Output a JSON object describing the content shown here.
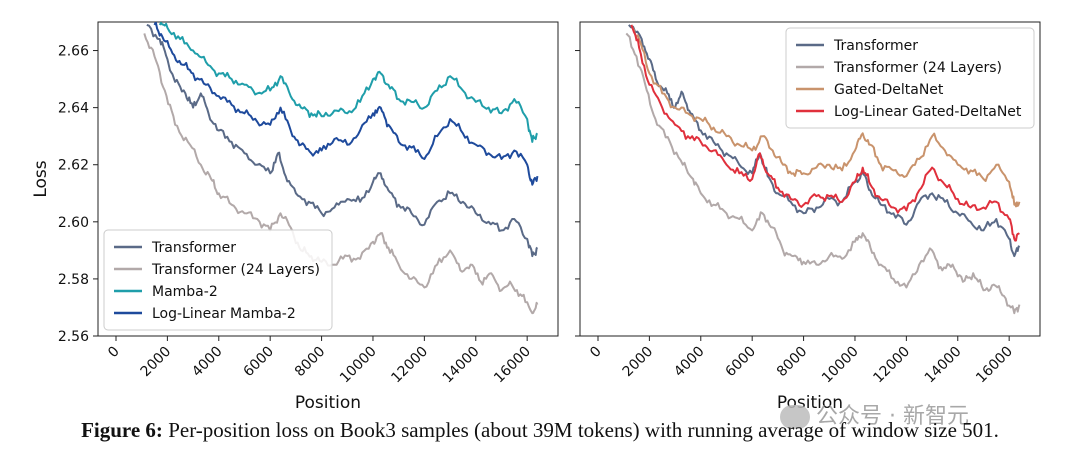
{
  "caption": {
    "label": "Figure 6:",
    "text": " Per-position loss on Book3 samples (about 39M tokens) with running average of window size 501."
  },
  "watermark": {
    "text": "公众号 · 新智元",
    "logo": "wechat-icon"
  },
  "chart_data": [
    {
      "type": "line",
      "xlabel": "Position",
      "ylabel": "Loss",
      "xlim": [
        -700,
        17200
      ],
      "ylim": [
        2.56,
        2.67
      ],
      "xticks": [
        0,
        2000,
        4000,
        6000,
        8000,
        10000,
        12000,
        14000,
        16000
      ],
      "yticks": [
        2.56,
        2.58,
        2.6,
        2.62,
        2.64,
        2.66
      ],
      "ytick_labels": [
        "2.56",
        "2.58",
        "2.60",
        "2.62",
        "2.64",
        "2.66"
      ],
      "legend_position": "lower-left",
      "grid": false,
      "series": [
        {
          "name": "Transformer",
          "color": "#5a6a87",
          "x": [
            1200,
            1700,
            2000,
            2300,
            2700,
            3000,
            3300,
            3600,
            4000,
            4500,
            5000,
            5500,
            6000,
            6300,
            6600,
            7000,
            7500,
            8000,
            8500,
            9000,
            9500,
            10000,
            10300,
            10600,
            11000,
            11500,
            12000,
            12500,
            13000,
            13500,
            14000,
            14500,
            15000,
            15500,
            16000,
            16200,
            16400
          ],
          "values": [
            2.669,
            2.664,
            2.657,
            2.649,
            2.645,
            2.64,
            2.645,
            2.638,
            2.632,
            2.628,
            2.624,
            2.62,
            2.617,
            2.624,
            2.616,
            2.61,
            2.607,
            2.603,
            2.605,
            2.608,
            2.607,
            2.614,
            2.617,
            2.611,
            2.606,
            2.603,
            2.599,
            2.607,
            2.61,
            2.607,
            2.603,
            2.6,
            2.597,
            2.601,
            2.594,
            2.588,
            2.591
          ]
        },
        {
          "name": "Transformer (24 Layers)",
          "color": "#b2a9a9",
          "x": [
            1100,
            1500,
            1900,
            2300,
            2800,
            3300,
            3700,
            4000,
            4500,
            5000,
            5500,
            6000,
            6400,
            6800,
            7200,
            7600,
            8000,
            8500,
            9000,
            9500,
            10000,
            10300,
            10600,
            11000,
            11500,
            12000,
            12500,
            13000,
            13400,
            13800,
            14200,
            14600,
            15000,
            15400,
            15800,
            16200,
            16400
          ],
          "values": [
            2.666,
            2.658,
            2.646,
            2.634,
            2.628,
            2.62,
            2.615,
            2.61,
            2.606,
            2.603,
            2.601,
            2.597,
            2.603,
            2.598,
            2.59,
            2.588,
            2.586,
            2.585,
            2.588,
            2.587,
            2.593,
            2.596,
            2.591,
            2.585,
            2.58,
            2.577,
            2.585,
            2.59,
            2.583,
            2.585,
            2.579,
            2.582,
            2.576,
            2.578,
            2.574,
            2.568,
            2.571
          ]
        },
        {
          "name": "Mamba-2",
          "color": "#1f9eaa",
          "x": [
            1700,
            2000,
            2500,
            3000,
            3500,
            4000,
            4500,
            5000,
            5500,
            6000,
            6400,
            6800,
            7200,
            7600,
            8000,
            8500,
            9000,
            9500,
            10000,
            10300,
            10600,
            11000,
            11500,
            12000,
            12500,
            13000,
            13500,
            14000,
            14500,
            15000,
            15500,
            16000,
            16200,
            16400
          ],
          "values": [
            2.669,
            2.668,
            2.664,
            2.66,
            2.656,
            2.652,
            2.65,
            2.648,
            2.645,
            2.646,
            2.651,
            2.644,
            2.64,
            2.638,
            2.637,
            2.639,
            2.638,
            2.642,
            2.65,
            2.652,
            2.648,
            2.643,
            2.642,
            2.64,
            2.646,
            2.651,
            2.646,
            2.642,
            2.64,
            2.638,
            2.643,
            2.636,
            2.628,
            2.631
          ]
        },
        {
          "name": "Log-Linear Mamba-2",
          "color": "#1e4a9c",
          "x": [
            1500,
            1800,
            2200,
            2600,
            3000,
            3500,
            4000,
            4500,
            5000,
            5500,
            6000,
            6400,
            6800,
            7200,
            7600,
            8000,
            8500,
            9000,
            9500,
            10000,
            10300,
            10600,
            11000,
            11500,
            12000,
            12500,
            13000,
            13500,
            14000,
            14500,
            15000,
            15500,
            16000,
            16200,
            16400
          ],
          "values": [
            2.669,
            2.665,
            2.659,
            2.655,
            2.652,
            2.648,
            2.644,
            2.641,
            2.638,
            2.635,
            2.634,
            2.64,
            2.632,
            2.627,
            2.624,
            2.625,
            2.629,
            2.627,
            2.632,
            2.638,
            2.64,
            2.634,
            2.628,
            2.626,
            2.622,
            2.63,
            2.636,
            2.631,
            2.627,
            2.624,
            2.622,
            2.625,
            2.62,
            2.613,
            2.616
          ]
        }
      ]
    },
    {
      "type": "line",
      "xlabel": "Position",
      "ylabel": "",
      "xlim": [
        -700,
        17200
      ],
      "ylim": [
        2.56,
        2.67
      ],
      "xticks": [
        0,
        2000,
        4000,
        6000,
        8000,
        10000,
        12000,
        14000,
        16000
      ],
      "yticks": [
        2.56,
        2.58,
        2.6,
        2.62,
        2.64,
        2.66
      ],
      "ytick_labels": [],
      "legend_position": "upper-right",
      "grid": false,
      "series": [
        {
          "name": "Transformer",
          "color": "#5a6a87",
          "x": [
            1200,
            1700,
            2000,
            2300,
            2700,
            3000,
            3300,
            3600,
            4000,
            4500,
            5000,
            5500,
            6000,
            6300,
            6600,
            7000,
            7500,
            8000,
            8500,
            9000,
            9500,
            10000,
            10300,
            10600,
            11000,
            11500,
            12000,
            12500,
            13000,
            13500,
            14000,
            14500,
            15000,
            15500,
            16000,
            16200,
            16400
          ],
          "values": [
            2.669,
            2.664,
            2.657,
            2.649,
            2.645,
            2.64,
            2.645,
            2.638,
            2.632,
            2.628,
            2.624,
            2.62,
            2.617,
            2.624,
            2.616,
            2.61,
            2.607,
            2.603,
            2.605,
            2.608,
            2.607,
            2.614,
            2.617,
            2.611,
            2.606,
            2.603,
            2.599,
            2.607,
            2.61,
            2.607,
            2.603,
            2.6,
            2.597,
            2.601,
            2.594,
            2.588,
            2.591
          ]
        },
        {
          "name": "Transformer (24 Layers)",
          "color": "#b2a9a9",
          "x": [
            1100,
            1500,
            1900,
            2300,
            2800,
            3300,
            3700,
            4000,
            4500,
            5000,
            5500,
            6000,
            6400,
            6800,
            7200,
            7600,
            8000,
            8500,
            9000,
            9500,
            10000,
            10300,
            10600,
            11000,
            11500,
            12000,
            12500,
            13000,
            13400,
            13800,
            14200,
            14600,
            15000,
            15400,
            15800,
            16200,
            16400
          ],
          "values": [
            2.666,
            2.658,
            2.646,
            2.634,
            2.628,
            2.62,
            2.615,
            2.61,
            2.606,
            2.603,
            2.601,
            2.597,
            2.603,
            2.598,
            2.59,
            2.588,
            2.586,
            2.585,
            2.588,
            2.587,
            2.593,
            2.596,
            2.591,
            2.585,
            2.58,
            2.577,
            2.585,
            2.59,
            2.583,
            2.585,
            2.579,
            2.582,
            2.576,
            2.578,
            2.574,
            2.568,
            2.571
          ]
        },
        {
          "name": "Gated-DeltaNet",
          "color": "#c9936c",
          "x": [
            1300,
            1600,
            2000,
            2500,
            3000,
            3500,
            4000,
            4500,
            5000,
            5500,
            6000,
            6400,
            6800,
            7200,
            7600,
            8000,
            8500,
            9000,
            9500,
            10000,
            10300,
            10600,
            11000,
            11500,
            12000,
            12500,
            13000,
            13500,
            14000,
            14500,
            15000,
            15500,
            16000,
            16200,
            16400
          ],
          "values": [
            2.669,
            2.664,
            2.652,
            2.645,
            2.64,
            2.638,
            2.636,
            2.633,
            2.63,
            2.627,
            2.625,
            2.63,
            2.625,
            2.62,
            2.617,
            2.617,
            2.619,
            2.62,
            2.618,
            2.625,
            2.631,
            2.627,
            2.62,
            2.618,
            2.616,
            2.622,
            2.63,
            2.625,
            2.62,
            2.618,
            2.615,
            2.62,
            2.614,
            2.606,
            2.607
          ]
        },
        {
          "name": "Log-Linear Gated-DeltaNet",
          "color": "#e0303c",
          "x": [
            1300,
            1600,
            2000,
            2500,
            3000,
            3500,
            4000,
            4500,
            5000,
            5500,
            6000,
            6300,
            6600,
            7000,
            7500,
            8000,
            8500,
            9000,
            9500,
            10000,
            10300,
            10600,
            11000,
            11500,
            12000,
            12500,
            13000,
            13500,
            14000,
            14500,
            15000,
            15500,
            16000,
            16200,
            16400
          ],
          "values": [
            2.669,
            2.661,
            2.648,
            2.64,
            2.634,
            2.63,
            2.628,
            2.625,
            2.62,
            2.617,
            2.615,
            2.624,
            2.617,
            2.612,
            2.608,
            2.606,
            2.609,
            2.609,
            2.607,
            2.614,
            2.619,
            2.613,
            2.608,
            2.605,
            2.604,
            2.611,
            2.619,
            2.613,
            2.608,
            2.605,
            2.605,
            2.607,
            2.601,
            2.594,
            2.596
          ]
        }
      ]
    }
  ]
}
